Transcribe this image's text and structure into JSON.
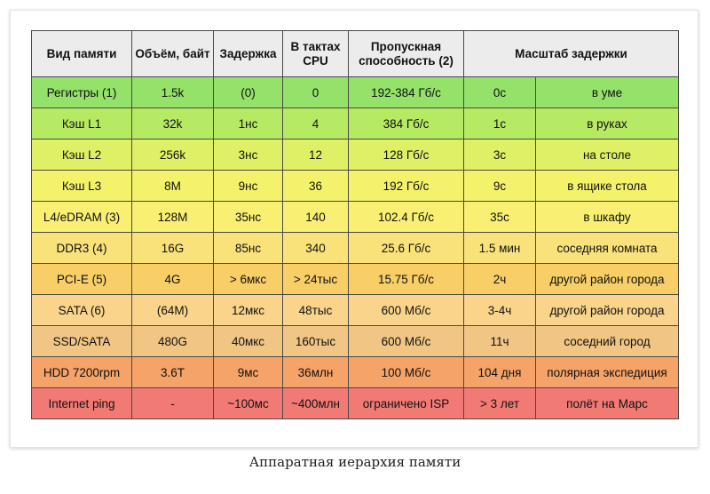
{
  "table": {
    "headers": [
      "Вид памяти",
      "Объём, байт",
      "Задержка",
      "В тактах CPU",
      "Пропускная способность (2)",
      "Масштаб задержки"
    ],
    "rows": [
      {
        "color": "#94e26a",
        "cells": [
          "Регистры (1)",
          "1.5k",
          "(0)",
          "0",
          "192-384 Гб/с",
          "0с",
          "в уме"
        ]
      },
      {
        "color": "#b6ea63",
        "cells": [
          "Кэш L1",
          "32k",
          "1нс",
          "4",
          "384 Гб/с",
          "1с",
          "в руках"
        ]
      },
      {
        "color": "#dff066",
        "cells": [
          "Кэш L2",
          "256k",
          "3нс",
          "12",
          "128 Гб/с",
          "3с",
          "на столе"
        ]
      },
      {
        "color": "#f4f26b",
        "cells": [
          "Кэш L3",
          "8M",
          "9нс",
          "36",
          "192 Гб/с",
          "9с",
          "в ящике стола"
        ]
      },
      {
        "color": "#f8ef73",
        "cells": [
          "L4/eDRAM (3)",
          "128M",
          "35нс",
          "140",
          "102.4 Гб/с",
          "35с",
          "в шкафу"
        ]
      },
      {
        "color": "#fae27b",
        "cells": [
          "DDR3 (4)",
          "16G",
          "85нс",
          "340",
          "25.6 Гб/с",
          "1.5 мин",
          "соседняя комната"
        ]
      },
      {
        "color": "#f8cf66",
        "cells": [
          "PCI-E (5)",
          "4G",
          "> 6мкс",
          "> 24тыс",
          "15.75 Гб/с",
          "2ч",
          "другой район города"
        ]
      },
      {
        "color": "#f9d48a",
        "cells": [
          "SATA (6)",
          "(64M)",
          "12мкс",
          "48тыс",
          "600 Мб/с",
          "3-4ч",
          "другой район города"
        ]
      },
      {
        "color": "#f1c684",
        "cells": [
          "SSD/SATA",
          "480G",
          "40мкс",
          "160тыс",
          "600 Мб/с",
          "11ч",
          "соседний город"
        ]
      },
      {
        "color": "#f5a368",
        "cells": [
          "HDD 7200rpm",
          "3.6T",
          "9мс",
          "36млн",
          "100 Мб/с",
          "104 дня",
          "полярная экспедиция"
        ]
      },
      {
        "color": "#f27a74",
        "cells": [
          "Internet ping",
          "-",
          "~100мс",
          "~400млн",
          "ограничено ISP",
          "> 3 лет",
          "полёт на Марс"
        ]
      }
    ]
  },
  "caption": "Аппаратная иерархия памяти"
}
